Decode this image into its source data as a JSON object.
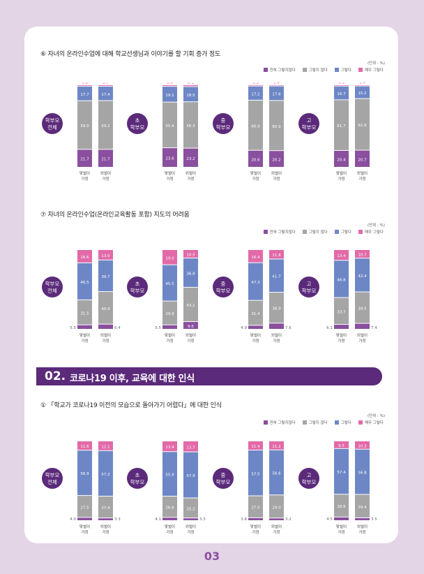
{
  "colors": {
    "s1": "#8a4f9e",
    "s2": "#a5a5a5",
    "s3": "#6d87c6",
    "s4": "#e26aa8",
    "badge": "#5b2a7a"
  },
  "legend": [
    "전혀 그렇지않다",
    "그렇지 않다",
    "그렇다",
    "매우 그렇다"
  ],
  "unit": "(단위 : %)",
  "groups": [
    "학부모 전체",
    "초 학부모",
    "중 학부모",
    "고 학부모"
  ],
  "bar_labels": [
    "맞벌이 가정",
    "외벌이 가정"
  ],
  "section6": {
    "title": "⑥ 자녀의 온라인수업에 대해 학교선생님과 이야기를 할 기회 증가 정도"
  },
  "section7": {
    "title": "⑦ 자녀의 온라인수업(온라인교육활동 포함) 지도의 어려움"
  },
  "banner": {
    "num": "02.",
    "text": "코로나19 이후, 교육에 대한 인식"
  },
  "section1": {
    "title": "① 「학교가 코로나19 이전의 모습으로 돌아가기 어렵다」에 대한 인식"
  },
  "page_number": "03",
  "chart_data": [
    {
      "type": "bar",
      "stacked": true,
      "series_names": [
        "전혀 그렇지않다",
        "그렇지 않다",
        "그렇다",
        "매우 그렇다"
      ],
      "groups": [
        {
          "name": "학부모 전체",
          "bars": [
            {
              "label": "맞벌이 가정",
              "values": [
                21.7,
                59.0,
                17.7,
                1.6
              ]
            },
            {
              "label": "외벌이 가정",
              "values": [
                21.7,
                59.2,
                17.4,
                1.7
              ]
            }
          ]
        },
        {
          "name": "초 학부모",
          "bars": [
            {
              "label": "맞벌이 가정",
              "values": [
                23.6,
                55.4,
                19.1,
                1.8
              ]
            },
            {
              "label": "외벌이 가정",
              "values": [
                23.2,
                56.3,
                18.5,
                2.1
              ]
            }
          ]
        },
        {
          "name": "중 학부모",
          "bars": [
            {
              "label": "맞벌이 가정",
              "values": [
                20.6,
                60.9,
                17.1,
                1.5
              ]
            },
            {
              "label": "외벌이 가정",
              "values": [
                20.2,
                60.9,
                17.6,
                1.4
              ]
            }
          ]
        },
        {
          "name": "고 학부모",
          "bars": [
            {
              "label": "맞벌이 가정",
              "values": [
                20.4,
                61.7,
                16.7,
                1.5
              ]
            },
            {
              "label": "외벌이 가정",
              "values": [
                20.7,
                62.6,
                15.2,
                1.4
              ]
            }
          ]
        }
      ]
    },
    {
      "type": "bar",
      "stacked": true,
      "series_names": [
        "전혀 그렇지않다",
        "그렇지 않다",
        "그렇다",
        "매우 그렇다"
      ],
      "groups": [
        {
          "name": "학부모 전체",
          "bars": [
            {
              "label": "맞벌이 가정",
              "values": [
                5.5,
                31.5,
                46.5,
                16.6
              ]
            },
            {
              "label": "외벌이 가정",
              "values": [
                6.4,
                40.9,
                39.7,
                13.0
              ]
            }
          ]
        },
        {
          "name": "초 학부모",
          "bars": [
            {
              "label": "맞벌이 가정",
              "values": [
                5.5,
                29.9,
                45.5,
                19.0
              ]
            },
            {
              "label": "외벌이 가정",
              "values": [
                9.6,
                43.1,
                36.8,
                10.5
              ]
            }
          ]
        },
        {
          "name": "중 학부모",
          "bars": [
            {
              "label": "맞벌이 가정",
              "values": [
                4.9,
                31.4,
                47.3,
                16.4
              ]
            },
            {
              "label": "외벌이 가정",
              "values": [
                7.6,
                38.9,
                41.7,
                11.8
              ]
            }
          ]
        },
        {
          "name": "고 학부모",
          "bars": [
            {
              "label": "맞벌이 가정",
              "values": [
                6.1,
                33.7,
                46.8,
                13.4
              ]
            },
            {
              "label": "외벌이 가정",
              "values": [
                7.4,
                39.5,
                42.4,
                10.7
              ]
            }
          ]
        }
      ]
    },
    {
      "type": "bar",
      "stacked": true,
      "series_names": [
        "전혀 그렇지않다",
        "그렇지 않다",
        "그렇다",
        "매우 그렇다"
      ],
      "groups": [
        {
          "name": "학부모 전체",
          "bars": [
            {
              "label": "맞벌이 가정",
              "values": [
                4.0,
                27.5,
                56.9,
                11.6
              ]
            },
            {
              "label": "외벌이 가정",
              "values": [
                3.3,
                27.4,
                57.2,
                12.1
              ]
            }
          ]
        },
        {
          "name": "초 학부모",
          "bars": [
            {
              "label": "맞벌이 가정",
              "values": [
                4.1,
                26.6,
                55.9,
                13.4
              ]
            },
            {
              "label": "외벌이 가정",
              "values": [
                3.3,
                25.2,
                57.9,
                13.7
              ]
            }
          ]
        },
        {
          "name": "중 학부모",
          "bars": [
            {
              "label": "맞벌이 가정",
              "values": [
                3.6,
                27.5,
                57.5,
                11.4
              ]
            },
            {
              "label": "외벌이 가정",
              "values": [
                3.2,
                29.0,
                56.6,
                11.2
              ]
            }
          ]
        },
        {
          "name": "고 학부모",
          "bars": [
            {
              "label": "맞벌이 가정",
              "values": [
                4.5,
                28.6,
                57.4,
                9.5
              ]
            },
            {
              "label": "외벌이 가정",
              "values": [
                3.5,
                29.4,
                56.8,
                10.3
              ]
            }
          ]
        }
      ]
    }
  ]
}
